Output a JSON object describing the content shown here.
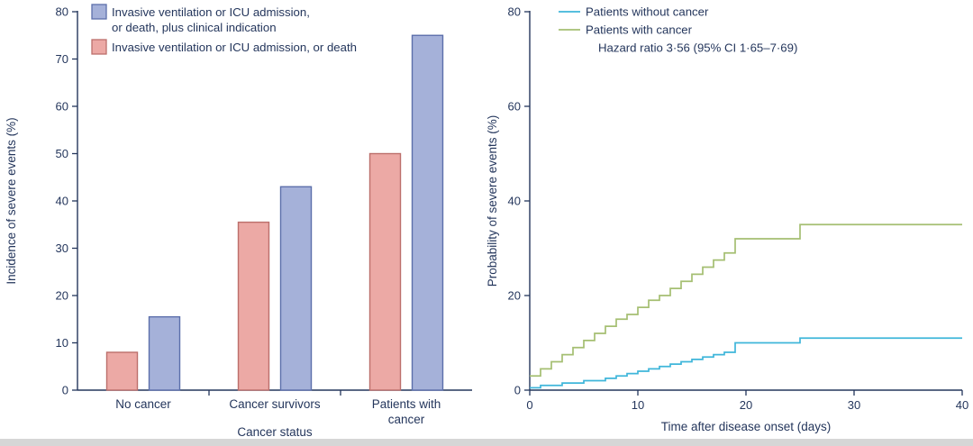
{
  "colors": {
    "text": "#24365c",
    "axis": "#24365c",
    "blue_fill": "#a5b1d9",
    "blue_stroke": "#5c6fab",
    "pink_fill": "#eca9a5",
    "pink_stroke": "#bc6f6b",
    "cyan": "#3fb6da",
    "green": "#a5bf72",
    "strip": "#d6d6d6"
  },
  "chart_data": [
    {
      "type": "bar",
      "panel": "left",
      "ylabel": "Incidence of severe events (%)",
      "xlabel": "Cancer status",
      "ylim": [
        0,
        80
      ],
      "yticks": [
        0,
        10,
        20,
        30,
        40,
        50,
        60,
        70,
        80
      ],
      "categories": [
        "No cancer",
        "Cancer survivors",
        "Patients with\ncancer"
      ],
      "series": [
        {
          "name": "Invasive ventilation or ICU admission, or death",
          "color": "pink",
          "values": [
            8,
            35.5,
            50
          ]
        },
        {
          "name": "Invasive ventilation or ICU admission, or death, plus clinical indication",
          "color": "blue",
          "values": [
            15.5,
            43,
            75
          ]
        }
      ],
      "legend": [
        {
          "color": "blue",
          "lines": [
            "Invasive ventilation or ICU admission,",
            "or death, plus clinical indication"
          ]
        },
        {
          "color": "pink",
          "lines": [
            "Invasive ventilation or ICU admission, or death"
          ]
        }
      ]
    },
    {
      "type": "line",
      "panel": "right",
      "ylabel": "Probability of severe events (%)",
      "xlabel": "Time after disease onset (days)",
      "ylim": [
        0,
        80
      ],
      "xlim": [
        0,
        40
      ],
      "yticks": [
        0,
        20,
        40,
        60,
        80
      ],
      "xticks": [
        0,
        10,
        20,
        30,
        40
      ],
      "annotation": "Hazard ratio 3·56 (95% CI 1·65–7·69)",
      "series": [
        {
          "name": "Patients without cancer",
          "color": "cyan",
          "step": true,
          "points": [
            [
              0,
              0.5
            ],
            [
              1,
              1
            ],
            [
              3,
              1.5
            ],
            [
              5,
              2
            ],
            [
              7,
              2.5
            ],
            [
              8,
              3
            ],
            [
              9,
              3.5
            ],
            [
              10,
              4
            ],
            [
              11,
              4.5
            ],
            [
              12,
              5
            ],
            [
              13,
              5.5
            ],
            [
              14,
              6
            ],
            [
              15,
              6.5
            ],
            [
              16,
              7
            ],
            [
              17,
              7.5
            ],
            [
              18,
              8
            ],
            [
              19,
              10
            ],
            [
              25,
              11
            ],
            [
              40,
              11
            ]
          ]
        },
        {
          "name": "Patients with cancer",
          "color": "green",
          "step": true,
          "points": [
            [
              0,
              3
            ],
            [
              1,
              4.5
            ],
            [
              2,
              6
            ],
            [
              3,
              7.5
            ],
            [
              4,
              9
            ],
            [
              5,
              10.5
            ],
            [
              6,
              12
            ],
            [
              7,
              13.5
            ],
            [
              8,
              15
            ],
            [
              9,
              16
            ],
            [
              10,
              17.5
            ],
            [
              11,
              19
            ],
            [
              12,
              20
            ],
            [
              13,
              21.5
            ],
            [
              14,
              23
            ],
            [
              15,
              24.5
            ],
            [
              16,
              26
            ],
            [
              17,
              27.5
            ],
            [
              18,
              29
            ],
            [
              19,
              32
            ],
            [
              25,
              35
            ],
            [
              40,
              35
            ]
          ]
        }
      ]
    }
  ]
}
